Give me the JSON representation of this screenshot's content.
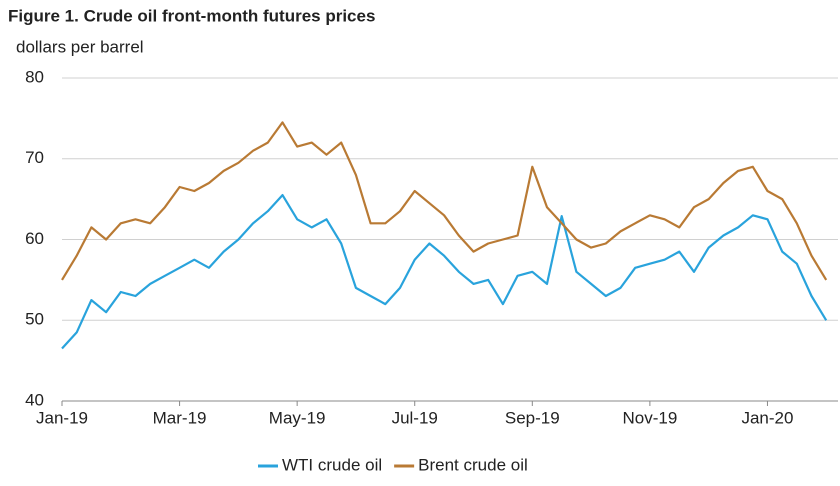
{
  "chart_data": {
    "type": "line",
    "title": "Figure 1. Crude oil front-month futures prices",
    "y_label": "dollars per barrel",
    "x": [
      0,
      0.25,
      0.5,
      0.75,
      1,
      1.25,
      1.5,
      1.75,
      2,
      2.25,
      2.5,
      2.75,
      3,
      3.25,
      3.5,
      3.75,
      4,
      4.25,
      4.5,
      4.75,
      5,
      5.25,
      5.5,
      5.75,
      6,
      6.25,
      6.5,
      6.75,
      7,
      7.25,
      7.5,
      7.75,
      8,
      8.25,
      8.5,
      8.75,
      9,
      9.25,
      9.5,
      9.75,
      10,
      10.25,
      10.5,
      10.75,
      11,
      11.25,
      11.5,
      11.75,
      12,
      12.25,
      12.5,
      12.75,
      13
    ],
    "series": [
      {
        "name": "WTI crude oil",
        "color": "#29a3dc",
        "values": [
          46.5,
          48.5,
          52.5,
          51,
          53.5,
          53,
          54.5,
          55.5,
          56.5,
          57.5,
          56.5,
          58.5,
          60,
          62,
          63.5,
          65.5,
          62.5,
          61.5,
          62.5,
          59.5,
          54,
          53,
          52,
          54,
          57.5,
          59.5,
          58,
          56,
          54.5,
          55,
          52,
          55.5,
          56,
          54.5,
          62.9,
          56,
          54.5,
          53,
          54,
          56.5,
          57,
          57.5,
          58.5,
          56,
          59,
          60.5,
          61.5,
          63,
          62.5,
          58.5,
          57,
          53,
          50
        ]
      },
      {
        "name": "Brent crude oil",
        "color": "#b97a34",
        "values": [
          55,
          58,
          61.5,
          60,
          62,
          62.5,
          62,
          64,
          66.5,
          66,
          67,
          68.5,
          69.5,
          71,
          72,
          74.5,
          71.5,
          72,
          70.5,
          72,
          68,
          62,
          62,
          63.5,
          66,
          64.5,
          63,
          60.5,
          58.5,
          59.5,
          60,
          60.5,
          69,
          64,
          62,
          60,
          59,
          59.5,
          61,
          62,
          63,
          62.5,
          61.5,
          64,
          65,
          67,
          68.5,
          69,
          66,
          65,
          62,
          58,
          55
        ]
      }
    ],
    "xlim": [
      0,
      13.2
    ],
    "xticks": [
      {
        "value": 0,
        "label": "Jan-19"
      },
      {
        "value": 2,
        "label": "Mar-19"
      },
      {
        "value": 4,
        "label": "May-19"
      },
      {
        "value": 6,
        "label": "Jul-19"
      },
      {
        "value": 8,
        "label": "Sep-19"
      },
      {
        "value": 10,
        "label": "Nov-19"
      },
      {
        "value": 12,
        "label": "Jan-20"
      }
    ],
    "ylim": [
      40,
      80
    ],
    "yticks": [
      40,
      50,
      60,
      70,
      80
    ],
    "grid": true,
    "legend": "bottom"
  }
}
